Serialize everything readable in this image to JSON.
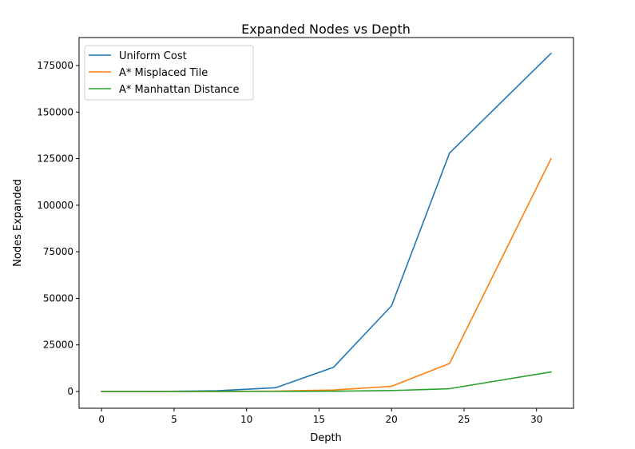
{
  "chart_data": {
    "type": "line",
    "title": "Expanded Nodes vs Depth",
    "xlabel": "Depth",
    "ylabel": "Nodes Expanded",
    "x": [
      0,
      2,
      4,
      8,
      12,
      16,
      20,
      24,
      31
    ],
    "xlim": [
      -1.55,
      32.55
    ],
    "ylim": [
      -9000,
      190000
    ],
    "xticks": [
      0,
      5,
      10,
      15,
      20,
      25,
      30
    ],
    "yticks": [
      0,
      25000,
      50000,
      75000,
      100000,
      125000,
      150000,
      175000
    ],
    "grid": false,
    "legend_position": "top-left",
    "series": [
      {
        "name": "Uniform Cost",
        "color": "#1f77b4",
        "values": [
          1,
          6,
          30,
          400,
          2000,
          13000,
          46000,
          128000,
          181500
        ]
      },
      {
        "name": "A* Misplaced Tile",
        "color": "#ff7f0e",
        "values": [
          1,
          3,
          8,
          50,
          200,
          800,
          2800,
          15000,
          125000
        ]
      },
      {
        "name": "A* Manhattan Distance",
        "color": "#2ca02c",
        "values": [
          1,
          3,
          6,
          20,
          60,
          150,
          500,
          1500,
          10500
        ]
      }
    ]
  }
}
